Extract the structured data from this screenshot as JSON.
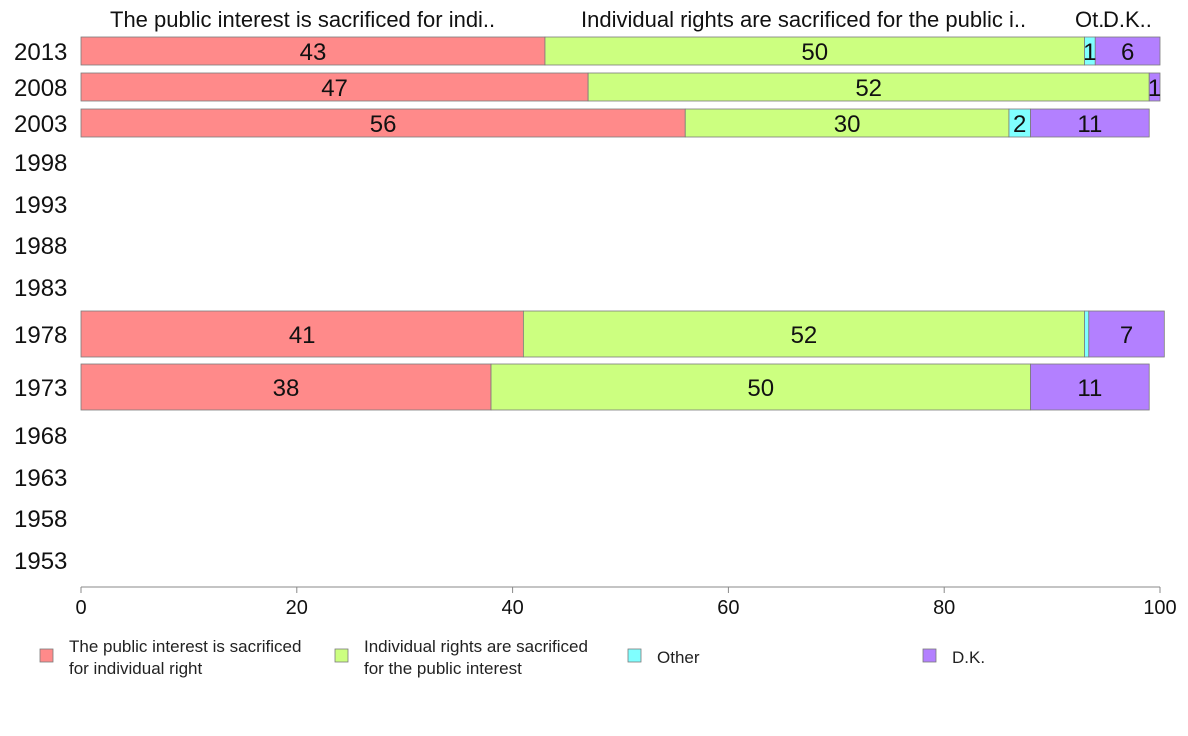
{
  "chart_data": {
    "type": "bar",
    "orientation": "horizontal",
    "stacked": true,
    "column_headers": [
      "The public interest is sacrificed for indi..",
      "Individual rights are sacrificed for the public i..",
      "Ot..",
      "D.K.."
    ],
    "categories": [
      "2013",
      "2008",
      "2003",
      "1998",
      "1993",
      "1988",
      "1983",
      "1978",
      "1973",
      "1968",
      "1963",
      "1958",
      "1953"
    ],
    "series": [
      {
        "name": "The public interest is sacrificed for individual right",
        "color": "#ff8a8a",
        "values": [
          43,
          47,
          56,
          null,
          null,
          null,
          null,
          41,
          38,
          null,
          null,
          null,
          null
        ]
      },
      {
        "name": "Individual rights are sacrificed for the public interest",
        "color": "#ccff80",
        "values": [
          50,
          52,
          30,
          null,
          null,
          null,
          null,
          52,
          50,
          null,
          null,
          null,
          null
        ]
      },
      {
        "name": "Other",
        "color": "#80ffff",
        "values": [
          1,
          0,
          2,
          null,
          null,
          null,
          null,
          0.4,
          0,
          null,
          null,
          null,
          null
        ]
      },
      {
        "name": "D.K.",
        "color": "#b380ff",
        "values": [
          6,
          1,
          11,
          null,
          null,
          null,
          null,
          7,
          11,
          null,
          null,
          null,
          null
        ]
      }
    ],
    "data_labels": [
      [
        "43",
        "47",
        "56",
        "",
        "",
        "",
        "",
        "41",
        "38",
        "",
        "",
        "",
        ""
      ],
      [
        "50",
        "52",
        "30",
        "",
        "",
        "",
        "",
        "52",
        "50",
        "",
        "",
        "",
        ""
      ],
      [
        "1",
        "",
        "2",
        "",
        "",
        "",
        "",
        "",
        "",
        "",
        "",
        "",
        ""
      ],
      [
        "6",
        "1",
        "11",
        "",
        "",
        "",
        "",
        "7",
        "11",
        "",
        "",
        "",
        ""
      ]
    ],
    "xlim": [
      0,
      100
    ],
    "x_ticks": [
      "0",
      "20",
      "40",
      "60",
      "80",
      "100"
    ],
    "grid": false,
    "legend": {
      "position": "bottom",
      "items": [
        {
          "lines": [
            "The public interest is sacrificed",
            "for individual right"
          ],
          "color": "#ff8a8a"
        },
        {
          "lines": [
            "Individual rights are sacrificed",
            "for the public interest"
          ],
          "color": "#ccff80"
        },
        {
          "lines": [
            "Other"
          ],
          "color": "#80ffff"
        },
        {
          "lines": [
            "D.K."
          ],
          "color": "#b380ff"
        }
      ]
    }
  }
}
